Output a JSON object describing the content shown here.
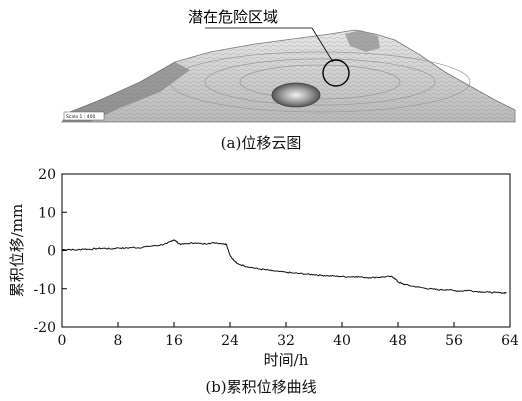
{
  "figure_a": {
    "annotation": "潜在危险区域",
    "scale_bar": "Scale 1 : 400",
    "caption": "(a)位移云图"
  },
  "chart_data": {
    "type": "line",
    "caption": "(b)累积位移曲线",
    "xlabel": "时间/h",
    "ylabel": "累积位移/mm",
    "xlim": [
      0,
      64
    ],
    "ylim": [
      -20,
      20
    ],
    "xticks": [
      0,
      8,
      16,
      24,
      32,
      40,
      48,
      56,
      64
    ],
    "yticks": [
      -20,
      -10,
      0,
      10,
      20
    ],
    "grid": false,
    "series": [
      {
        "x": [
          0,
          1,
          2,
          3,
          4,
          5,
          6,
          7,
          8,
          9,
          10,
          11,
          12,
          13,
          14,
          15,
          15.5,
          16,
          16.5,
          17,
          18,
          19,
          20,
          21,
          22,
          23,
          23.5,
          24,
          24.5,
          25,
          26,
          27,
          28,
          29,
          30,
          31,
          32,
          33,
          34,
          35,
          36,
          37,
          38,
          39,
          40,
          41,
          42,
          43,
          44,
          45,
          46,
          47,
          47.5,
          48,
          48.5,
          49,
          50,
          51,
          52,
          53,
          54,
          55,
          56,
          57,
          58,
          59,
          60,
          61,
          62,
          63,
          63.5
        ],
        "y": [
          0.2,
          0.3,
          0.1,
          0.4,
          0.3,
          0.5,
          0.6,
          0.4,
          0.7,
          0.6,
          0.8,
          0.7,
          1.0,
          1.2,
          1.4,
          1.8,
          2.4,
          2.8,
          2.1,
          1.6,
          1.8,
          2.0,
          1.7,
          1.9,
          2.0,
          1.8,
          1.6,
          -1.2,
          -2.5,
          -3.4,
          -4.0,
          -4.4,
          -4.8,
          -5.0,
          -5.3,
          -5.5,
          -5.7,
          -5.9,
          -6.0,
          -6.2,
          -6.3,
          -6.5,
          -6.6,
          -6.7,
          -6.8,
          -6.9,
          -6.8,
          -7.0,
          -7.1,
          -7.0,
          -6.9,
          -6.8,
          -7.2,
          -8.2,
          -8.6,
          -8.9,
          -9.3,
          -9.6,
          -9.9,
          -10.1,
          -10.3,
          -10.2,
          -10.5,
          -10.6,
          -10.4,
          -10.7,
          -10.8,
          -10.9,
          -11.0,
          -11.1,
          -11.0
        ]
      }
    ]
  }
}
